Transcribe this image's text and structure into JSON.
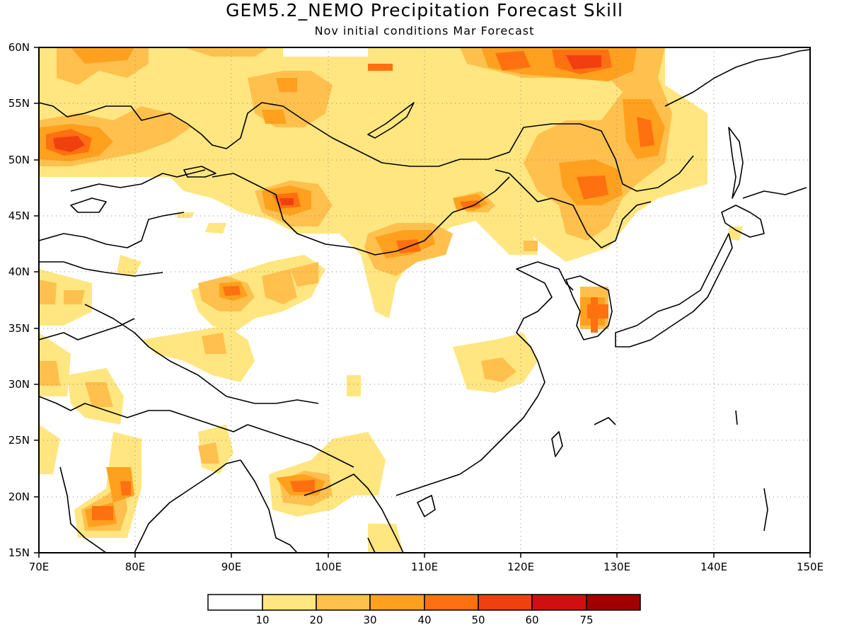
{
  "title": "GEM5.2_NEMO Precipitation Forecast Skill",
  "subtitle": "Nov initial conditions  Mar Forecast",
  "map": {
    "lon_range": [
      70,
      150
    ],
    "lat_range": [
      15,
      60
    ],
    "lon_ticks": [
      "70E",
      "80E",
      "90E",
      "100E",
      "110E",
      "120E",
      "130E",
      "140E",
      "150E"
    ],
    "lat_ticks": [
      "60N",
      "55N",
      "50N",
      "45N",
      "40N",
      "35N",
      "30N",
      "25N",
      "20N",
      "15N"
    ],
    "gridlines": "dotted",
    "skill_colors": [
      "#ffffff",
      "#ffe680",
      "#ffc04d",
      "#ffa01e",
      "#ff7010",
      "#f04010",
      "#d01010",
      "#a00000"
    ]
  },
  "colorbar": {
    "labels": [
      "10",
      "20",
      "30",
      "40",
      "50",
      "60",
      "75"
    ],
    "colors": [
      "#ffffff",
      "#ffe680",
      "#ffc04d",
      "#ffa01e",
      "#ff7010",
      "#f04010",
      "#d01010",
      "#a00000"
    ]
  }
}
